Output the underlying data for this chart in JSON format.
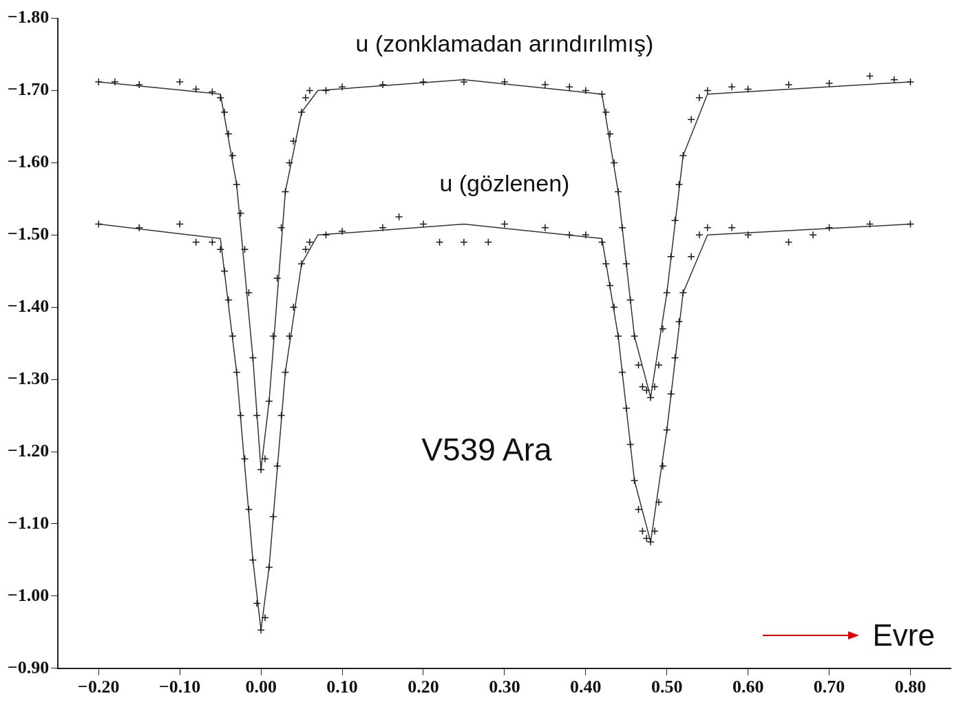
{
  "chart_data": {
    "type": "scatter",
    "xlabel": "Evre",
    "annotations": [
      "V539 Ara"
    ],
    "xlim": [
      -0.25,
      0.85
    ],
    "ylim": [
      -0.9,
      -1.8
    ],
    "xticks": [
      {
        "value": -0.2,
        "label": "−0.20"
      },
      {
        "value": -0.1,
        "label": "−0.10"
      },
      {
        "value": 0,
        "label": "0.00"
      },
      {
        "value": 0.1,
        "label": "0.10"
      },
      {
        "value": 0.2,
        "label": "0.20"
      },
      {
        "value": 0.3,
        "label": "0.30"
      },
      {
        "value": 0.4,
        "label": "0.40"
      },
      {
        "value": 0.5,
        "label": "0.50"
      },
      {
        "value": 0.6,
        "label": "0.60"
      },
      {
        "value": 0.7,
        "label": "0.70"
      },
      {
        "value": 0.8,
        "label": "0.80"
      }
    ],
    "yticks": [
      {
        "value": -1.8,
        "label": "−1.80"
      },
      {
        "value": -1.7,
        "label": "−1.70"
      },
      {
        "value": -1.6,
        "label": "−1.60"
      },
      {
        "value": -1.5,
        "label": "−1.50"
      },
      {
        "value": -1.4,
        "label": "−1.40"
      },
      {
        "value": -1.3,
        "label": "−1.30"
      },
      {
        "value": -1.2,
        "label": "−1.20"
      },
      {
        "value": -1.1,
        "label": "−1.10"
      },
      {
        "value": -1.0,
        "label": "−1.00"
      },
      {
        "value": -0.9,
        "label": "−0.90"
      }
    ],
    "grid": false,
    "legend": false,
    "series": [
      {
        "name": "u (zonklamadan arındırılmış)",
        "marker": "cross",
        "color": "#1a1a1a",
        "x": [
          -0.2,
          -0.18,
          -0.15,
          -0.1,
          -0.08,
          -0.06,
          -0.05,
          -0.045,
          -0.04,
          -0.035,
          -0.03,
          -0.025,
          -0.02,
          -0.015,
          -0.01,
          -0.005,
          0,
          0.005,
          0.01,
          0.015,
          0.02,
          0.025,
          0.03,
          0.035,
          0.04,
          0.05,
          0.055,
          0.06,
          0.08,
          0.1,
          0.15,
          0.2,
          0.25,
          0.3,
          0.35,
          0.38,
          0.4,
          0.42,
          0.425,
          0.43,
          0.435,
          0.44,
          0.445,
          0.45,
          0.455,
          0.46,
          0.465,
          0.47,
          0.475,
          0.48,
          0.485,
          0.49,
          0.495,
          0.5,
          0.505,
          0.51,
          0.515,
          0.52,
          0.53,
          0.54,
          0.55,
          0.58,
          0.6,
          0.65,
          0.7,
          0.75,
          0.78,
          0.8
        ],
        "values": [
          -1.712,
          -1.712,
          -1.708,
          -1.712,
          -1.702,
          -1.698,
          -1.69,
          -1.67,
          -1.64,
          -1.61,
          -1.57,
          -1.53,
          -1.48,
          -1.42,
          -1.33,
          -1.25,
          -1.175,
          -1.19,
          -1.27,
          -1.36,
          -1.44,
          -1.51,
          -1.56,
          -1.6,
          -1.63,
          -1.67,
          -1.69,
          -1.7,
          -1.7,
          -1.705,
          -1.708,
          -1.712,
          -1.712,
          -1.712,
          -1.708,
          -1.705,
          -1.7,
          -1.695,
          -1.67,
          -1.64,
          -1.6,
          -1.56,
          -1.51,
          -1.46,
          -1.41,
          -1.36,
          -1.32,
          -1.29,
          -1.285,
          -1.275,
          -1.29,
          -1.32,
          -1.37,
          -1.42,
          -1.47,
          -1.52,
          -1.57,
          -1.61,
          -1.66,
          -1.69,
          -1.7,
          -1.705,
          -1.702,
          -1.708,
          -1.71,
          -1.72,
          -1.715,
          -1.712
        ]
      },
      {
        "name": "u (gözlenen)",
        "marker": "cross",
        "color": "#1a1a1a",
        "x": [
          -0.2,
          -0.15,
          -0.1,
          -0.08,
          -0.06,
          -0.05,
          -0.045,
          -0.04,
          -0.035,
          -0.03,
          -0.025,
          -0.02,
          -0.015,
          -0.01,
          -0.005,
          0,
          0.005,
          0.01,
          0.015,
          0.02,
          0.025,
          0.03,
          0.035,
          0.04,
          0.05,
          0.055,
          0.06,
          0.08,
          0.1,
          0.15,
          0.17,
          0.2,
          0.22,
          0.25,
          0.28,
          0.3,
          0.35,
          0.38,
          0.4,
          0.42,
          0.425,
          0.43,
          0.435,
          0.44,
          0.445,
          0.45,
          0.455,
          0.46,
          0.465,
          0.47,
          0.475,
          0.48,
          0.485,
          0.49,
          0.495,
          0.5,
          0.505,
          0.51,
          0.515,
          0.52,
          0.53,
          0.54,
          0.55,
          0.58,
          0.6,
          0.65,
          0.68,
          0.7,
          0.75,
          0.8
        ],
        "values": [
          -1.515,
          -1.51,
          -1.515,
          -1.49,
          -1.49,
          -1.48,
          -1.45,
          -1.41,
          -1.36,
          -1.31,
          -1.25,
          -1.19,
          -1.12,
          -1.05,
          -0.99,
          -0.953,
          -0.97,
          -1.04,
          -1.11,
          -1.18,
          -1.25,
          -1.31,
          -1.36,
          -1.4,
          -1.46,
          -1.48,
          -1.49,
          -1.5,
          -1.505,
          -1.51,
          -1.525,
          -1.515,
          -1.49,
          -1.49,
          -1.49,
          -1.515,
          -1.51,
          -1.5,
          -1.5,
          -1.49,
          -1.46,
          -1.43,
          -1.4,
          -1.36,
          -1.31,
          -1.26,
          -1.21,
          -1.16,
          -1.12,
          -1.09,
          -1.08,
          -1.075,
          -1.09,
          -1.13,
          -1.18,
          -1.23,
          -1.28,
          -1.33,
          -1.38,
          -1.42,
          -1.47,
          -1.5,
          -1.51,
          -1.51,
          -1.5,
          -1.49,
          -1.5,
          -1.51,
          -1.515,
          -1.515
        ]
      },
      {
        "type": "line",
        "color": "#333333",
        "x": [
          -0.2,
          -0.05,
          -0.03,
          -0.01,
          0,
          0.01,
          0.03,
          0.05,
          0.07,
          0.25,
          0.42,
          0.44,
          0.46,
          0.48,
          0.5,
          0.52,
          0.55,
          0.8
        ],
        "values": [
          -1.712,
          -1.695,
          -1.57,
          -1.33,
          -1.175,
          -1.27,
          -1.56,
          -1.67,
          -1.7,
          -1.715,
          -1.695,
          -1.56,
          -1.36,
          -1.275,
          -1.42,
          -1.61,
          -1.695,
          -1.712
        ]
      },
      {
        "type": "line",
        "color": "#333333",
        "x": [
          -0.2,
          -0.05,
          -0.03,
          -0.01,
          0,
          0.01,
          0.03,
          0.05,
          0.07,
          0.25,
          0.42,
          0.44,
          0.46,
          0.48,
          0.5,
          0.52,
          0.55,
          0.8
        ],
        "values": [
          -1.515,
          -1.495,
          -1.31,
          -1.05,
          -0.953,
          -1.04,
          -1.31,
          -1.46,
          -1.5,
          -1.515,
          -1.495,
          -1.36,
          -1.16,
          -1.075,
          -1.23,
          -1.42,
          -1.5,
          -1.515
        ]
      }
    ]
  }
}
